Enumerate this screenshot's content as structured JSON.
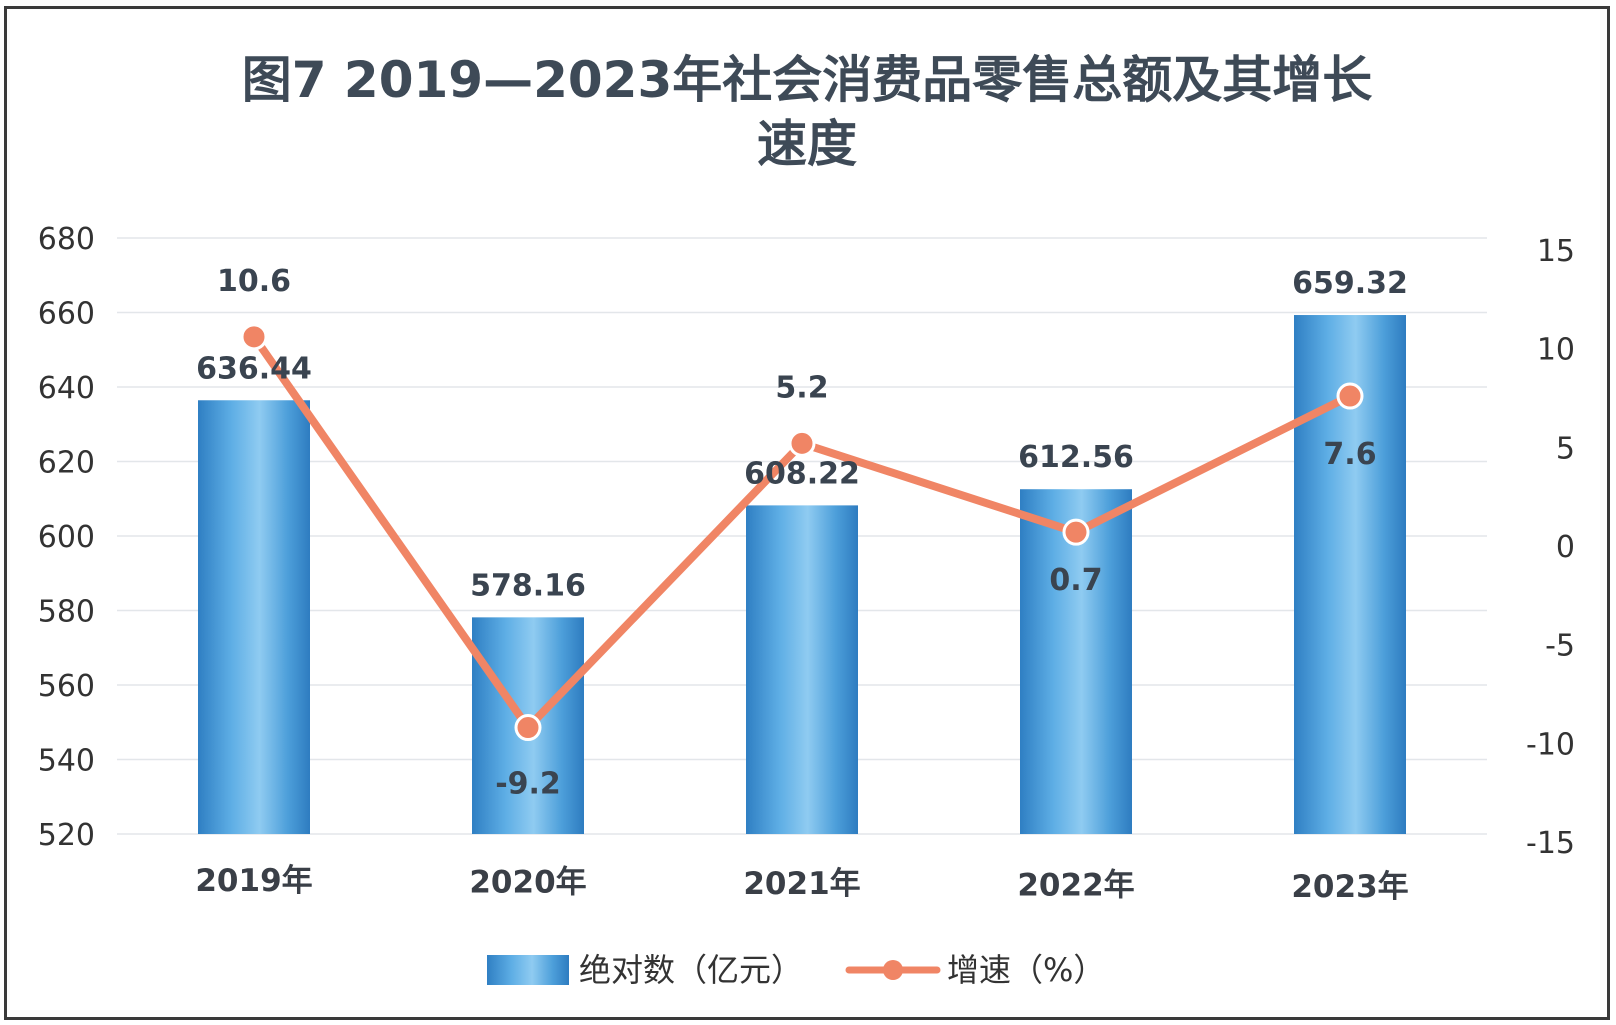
{
  "chart_data": {
    "type": "bar",
    "title_lines": [
      "图7 2019—2023年社会消费品零售总额及其增长",
      "速度"
    ],
    "categories": [
      "2019年",
      "2020年",
      "2021年",
      "2022年",
      "2023年"
    ],
    "series": [
      {
        "name": "绝对数（亿元）",
        "type": "bar",
        "axis": "left",
        "values": [
          636.44,
          578.16,
          608.22,
          612.56,
          659.32
        ],
        "labels": [
          "636.44",
          "578.16",
          "608.22",
          "612.56",
          "659.32"
        ],
        "color": "#3a8fd1"
      },
      {
        "name": "增速（%）",
        "type": "line",
        "axis": "right",
        "values": [
          10.6,
          -9.2,
          5.2,
          0.7,
          7.6
        ],
        "labels": [
          "10.6",
          "-9.2",
          "5.2",
          "0.7",
          "7.6"
        ],
        "color": "#f08565"
      }
    ],
    "y_left": {
      "min": 520,
      "max": 680,
      "ticks": [
        "680",
        "660",
        "640",
        "620",
        "600",
        "580",
        "560",
        "540",
        "520"
      ]
    },
    "y_right": {
      "min": -15,
      "max": 15,
      "ticks": [
        "15",
        "10",
        "5",
        "0",
        "-5",
        "-10",
        "-15"
      ]
    },
    "grid": true,
    "legend": "bottom"
  }
}
